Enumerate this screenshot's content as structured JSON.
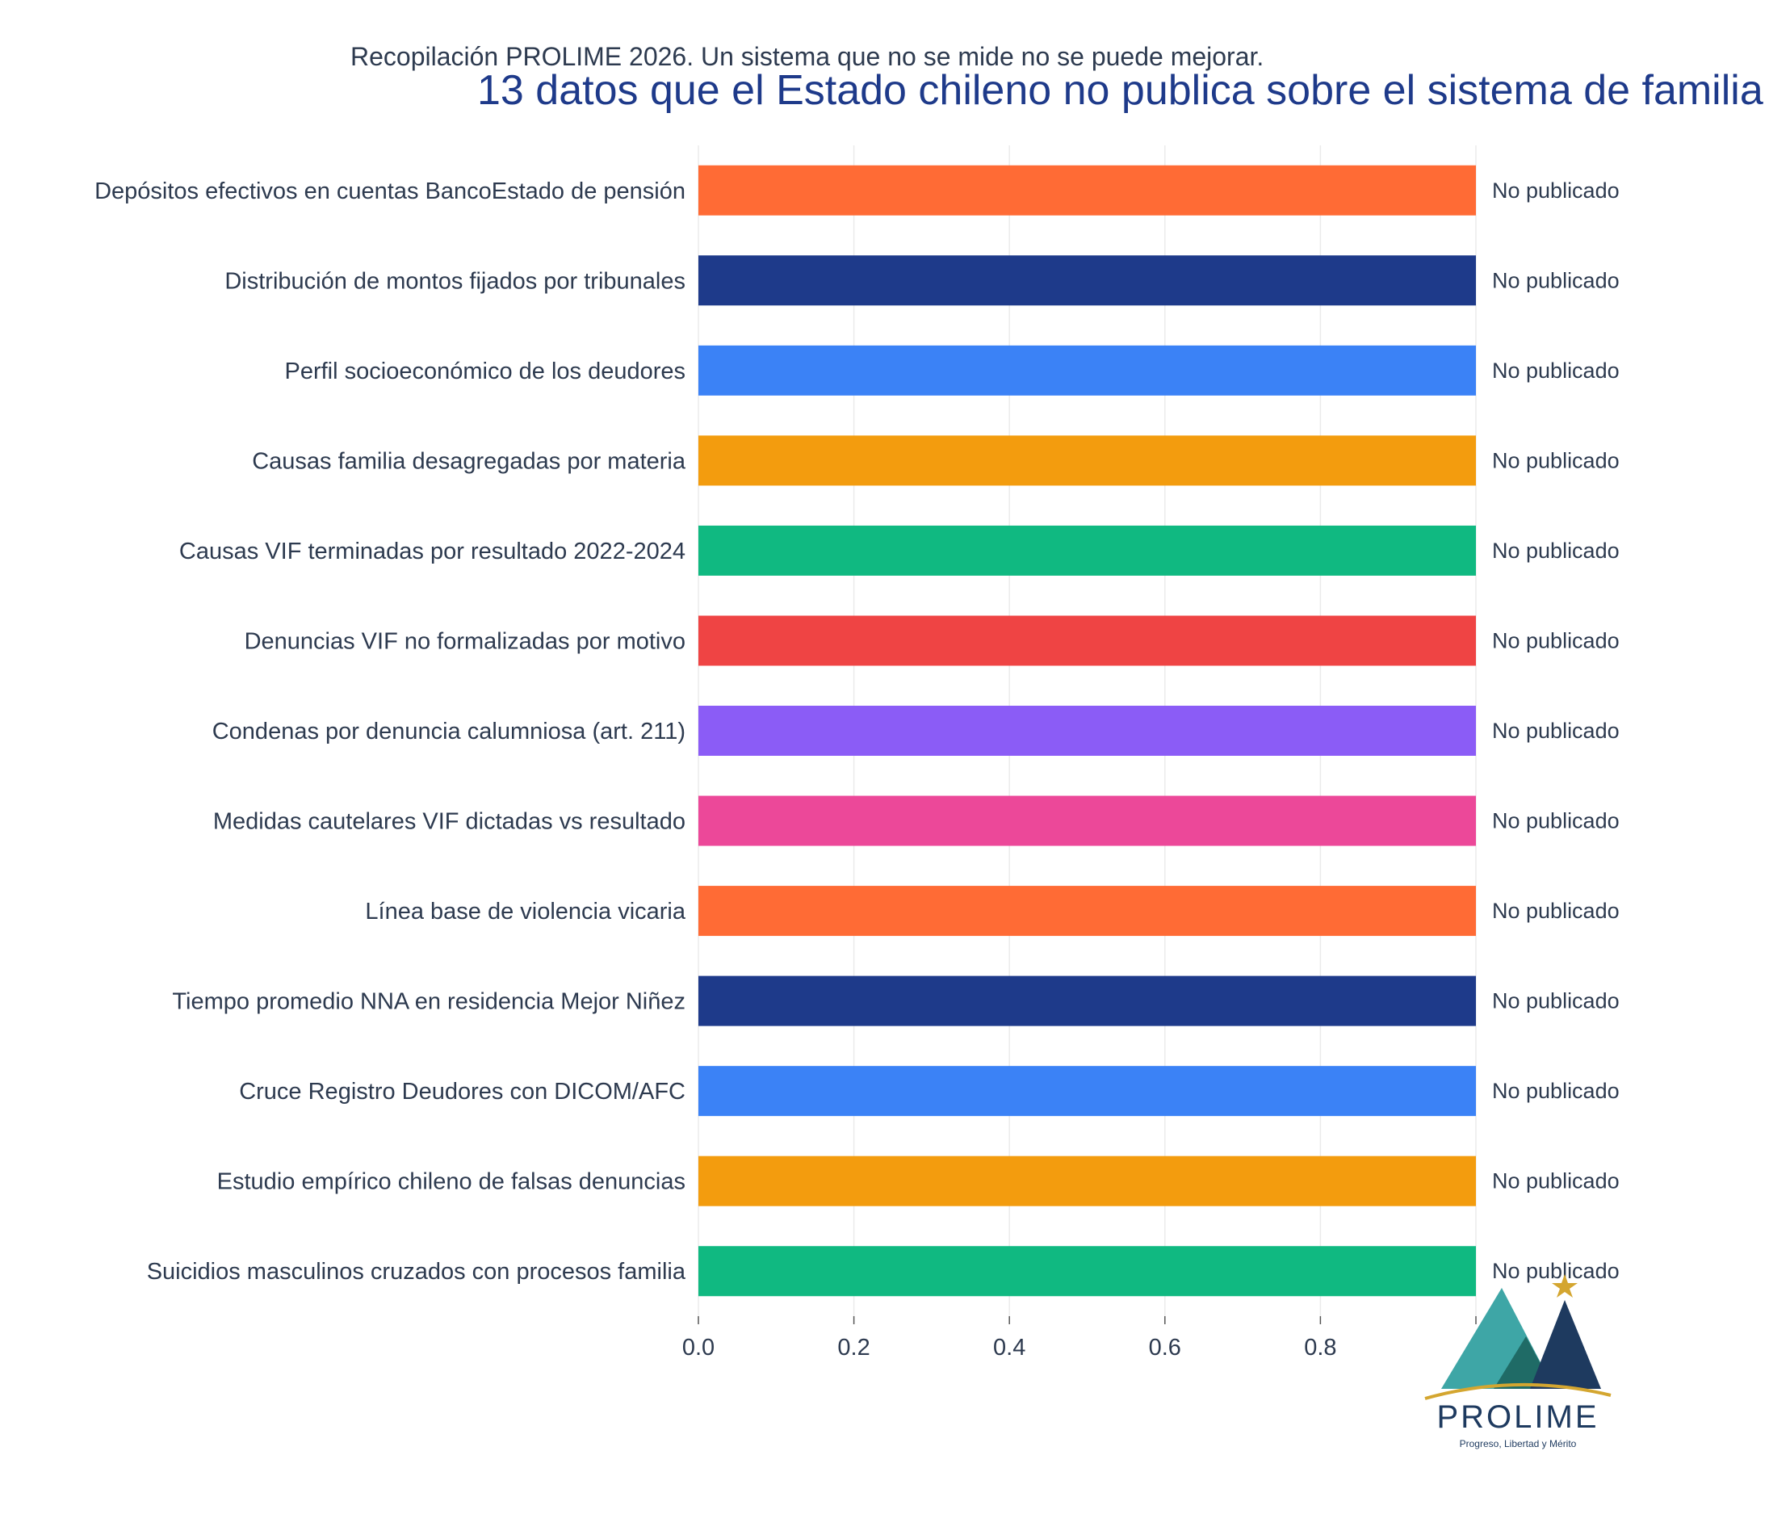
{
  "subtitle": "Recopilación PROLIME 2026. Un sistema que no se mide no se puede mejorar.",
  "title": "13 datos que el Estado chileno no publica sobre el sistema de familia",
  "chart_data": {
    "type": "bar",
    "orientation": "horizontal",
    "title": "13 datos que el Estado chileno no publica sobre el sistema de familia",
    "subtitle": "Recopilación PROLIME 2026. Un sistema que no se mide no se puede mejorar.",
    "xlim": [
      0,
      1
    ],
    "xticks": [
      "0.0",
      "0.2",
      "0.4",
      "0.6",
      "0.8",
      "1"
    ],
    "grid": "vertical",
    "categories": [
      "Depósitos efectivos en cuentas BancoEstado de pensión",
      "Distribución de montos fijados por tribunales",
      "Perfil socioeconómico de los deudores",
      "Causas familia desagregadas por materia",
      "Causas VIF terminadas por resultado 2022-2024",
      "Denuncias VIF no formalizadas por motivo",
      "Condenas por denuncia calumniosa (art. 211)",
      "Medidas cautelares VIF dictadas vs resultado",
      "Línea base de violencia vicaria",
      "Tiempo promedio NNA en residencia Mejor Niñez",
      "Cruce Registro Deudores con DICOM/AFC",
      "Estudio empírico chileno de falsas denuncias",
      "Suicidios masculinos cruzados con procesos familia"
    ],
    "values": [
      1,
      1,
      1,
      1,
      1,
      1,
      1,
      1,
      1,
      1,
      1,
      1,
      1
    ],
    "bar_labels": [
      "No publicado",
      "No publicado",
      "No publicado",
      "No publicado",
      "No publicado",
      "No publicado",
      "No publicado",
      "No publicado",
      "No publicado",
      "No publicado",
      "No publicado",
      "No publicado",
      "No publicado"
    ],
    "colors": [
      "#ff6b35",
      "#1e3a8a",
      "#3b82f6",
      "#f39c0e",
      "#10b981",
      "#ef4444",
      "#8b5cf6",
      "#ec4899",
      "#ff6b35",
      "#1e3a8a",
      "#3b82f6",
      "#f39c0e",
      "#10b981"
    ]
  },
  "logo": {
    "name": "PROLIME",
    "tagline": "Progreso, Libertad y Mérito",
    "colors": {
      "teal": "#3ea6a6",
      "dark_teal": "#1f6b66",
      "navy": "#1e3a5f",
      "gold": "#d4a630"
    }
  }
}
